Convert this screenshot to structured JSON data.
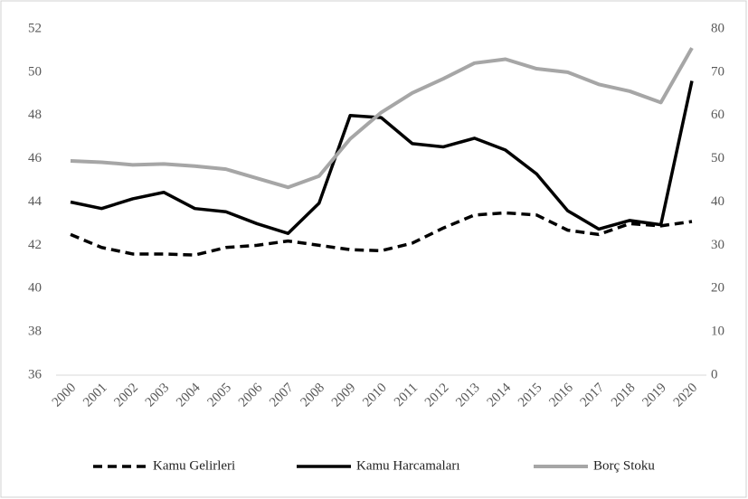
{
  "chart_data": {
    "type": "line",
    "categories": [
      "2000",
      "2001",
      "2002",
      "2003",
      "2004",
      "2005",
      "2006",
      "2007",
      "2008",
      "2009",
      "2010",
      "2011",
      "2012",
      "2013",
      "2014",
      "2015",
      "2016",
      "2017",
      "2018",
      "2019",
      "2020"
    ],
    "series": [
      {
        "name": "Kamu Gelirleri",
        "color": "#000000",
        "style": "dashed",
        "values": [
          42.5,
          41.9,
          41.6,
          41.6,
          41.55,
          41.9,
          42.0,
          42.2,
          42.0,
          41.8,
          41.75,
          42.1,
          42.8,
          43.4,
          43.5,
          43.4,
          42.7,
          42.5,
          43.0,
          42.9,
          43.1
        ]
      },
      {
        "name": "Kamu Harcamaları",
        "color": "#000000",
        "style": "solid",
        "values": [
          44.0,
          43.7,
          44.15,
          44.45,
          43.7,
          43.55,
          43.0,
          42.55,
          43.95,
          48.0,
          47.9,
          46.7,
          46.55,
          46.95,
          46.4,
          45.3,
          43.6,
          42.75,
          43.15,
          42.95,
          49.6
        ]
      },
      {
        "name": "Borç Stoku",
        "color": "#a6a6a6",
        "style": "solid",
        "axis": "y2",
        "values": [
          49.5,
          49.2,
          48.6,
          48.8,
          48.3,
          47.6,
          45.5,
          43.4,
          46.0,
          54.6,
          60.7,
          65.2,
          68.5,
          72.1,
          73.0,
          70.8,
          70.0,
          67.2,
          65.6,
          63.0,
          75.6
        ]
      }
    ],
    "ylim": [
      36,
      52
    ],
    "yticks": [
      36,
      38,
      40,
      42,
      44,
      46,
      48,
      50,
      52
    ],
    "y2lim": [
      0,
      80
    ],
    "y2ticks": [
      0,
      10,
      20,
      30,
      40,
      50,
      60,
      70,
      80
    ],
    "legend": "bottom"
  }
}
